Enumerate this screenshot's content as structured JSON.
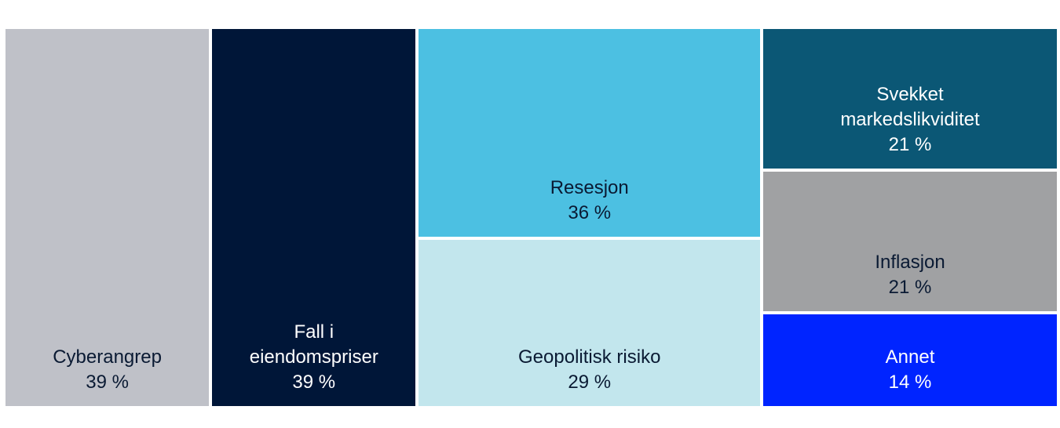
{
  "chart_data": {
    "type": "treemap",
    "categories": [
      "Cyberangrep",
      "Fall i eiendomspriser",
      "Resesjon",
      "Geopolitisk risiko",
      "Svekket markedslikviditet",
      "Inflasjon",
      "Annet"
    ],
    "values": [
      39,
      39,
      36,
      29,
      21,
      21,
      14
    ],
    "value_labels": [
      "39 %",
      "39 %",
      "36 %",
      "29 %",
      "21 %",
      "21 %",
      "14 %"
    ],
    "colors": [
      "#bfc1c8",
      "#001638",
      "#4cc0e2",
      "#c2e6ed",
      "#0b5775",
      "#a0a1a3",
      "#0024ff"
    ]
  }
}
